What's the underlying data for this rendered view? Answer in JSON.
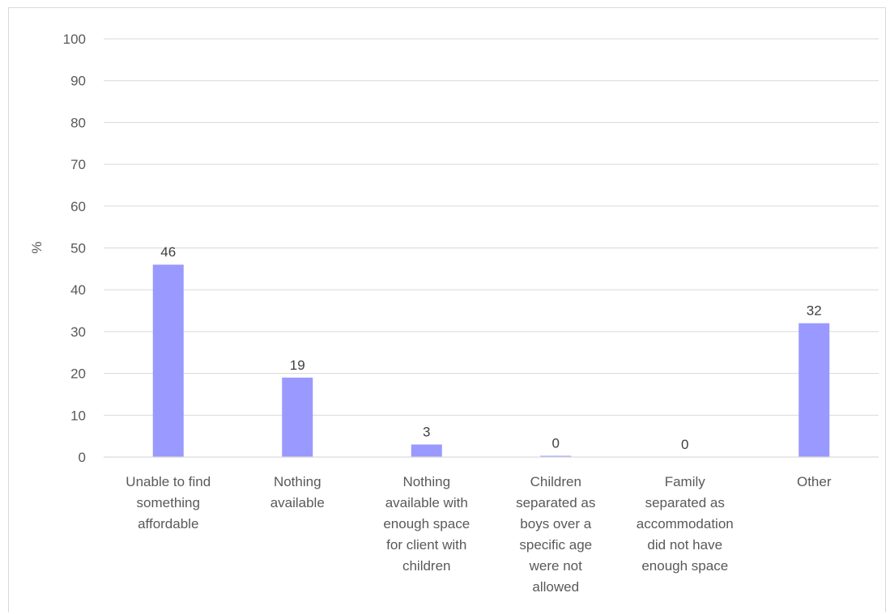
{
  "chart_data": {
    "type": "bar",
    "ylabel": "%",
    "xlabel": "",
    "title": "",
    "ylim": [
      0,
      100
    ],
    "yticks": [
      0,
      10,
      20,
      30,
      40,
      50,
      60,
      70,
      80,
      90,
      100
    ],
    "grid": true,
    "bar_color": "#9999ff",
    "categories": [
      [
        "Unable to find",
        "something",
        "affordable"
      ],
      [
        "Nothing",
        "available"
      ],
      [
        "Nothing",
        "available with",
        "enough space",
        "for client with",
        "children"
      ],
      [
        "Children",
        "separated as",
        "boys over a",
        "specific age",
        "were not",
        "allowed"
      ],
      [
        "Family",
        "separated as",
        "accommodation",
        "did not have",
        "enough space"
      ],
      [
        "Other"
      ]
    ],
    "values": [
      46,
      19,
      3,
      0.3,
      0,
      32
    ],
    "data_labels": [
      "46",
      "19",
      "3",
      "0",
      "0",
      "32"
    ]
  }
}
